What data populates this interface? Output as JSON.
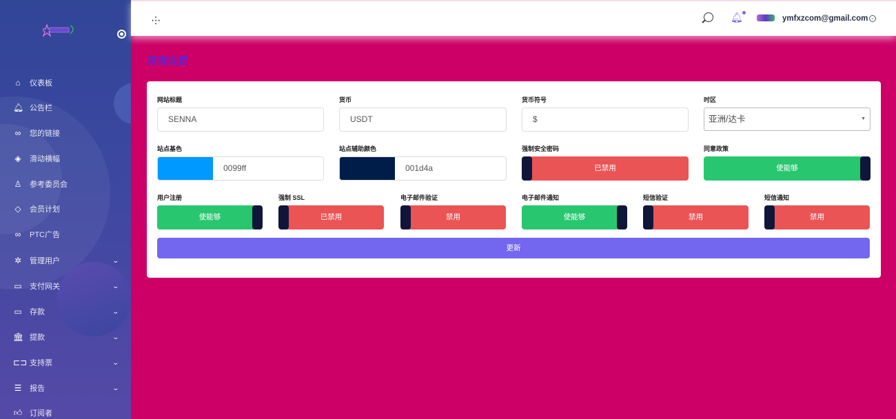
{
  "header": {
    "user_email": "ymfxzcom@gmail.com"
  },
  "sidebar": {
    "items": [
      {
        "label": "仪表板",
        "icon": "home-icon",
        "glyph": "⌂"
      },
      {
        "label": "公告栏",
        "icon": "bell-icon",
        "glyph": "🔔︎"
      },
      {
        "label": "您的链接",
        "icon": "link-icon",
        "glyph": "∞"
      },
      {
        "label": "滑动横幅",
        "icon": "layers-icon",
        "glyph": "◈"
      },
      {
        "label": "参考委员会",
        "icon": "tree-icon",
        "glyph": "♙"
      },
      {
        "label": "会员计划",
        "icon": "tag-icon",
        "glyph": "◇"
      },
      {
        "label": "PTC广告",
        "icon": "link-icon",
        "glyph": "∞"
      },
      {
        "label": "管理用户",
        "icon": "users-gear-icon",
        "glyph": "✲",
        "expandable": true
      },
      {
        "label": "支付网关",
        "icon": "credit-card-icon",
        "glyph": "▭",
        "expandable": true
      },
      {
        "label": "存款",
        "icon": "credit-card-icon",
        "glyph": "▭",
        "expandable": true
      },
      {
        "label": "提款",
        "icon": "bank-icon",
        "glyph": "🏛︎",
        "expandable": true
      },
      {
        "label": "支持票",
        "icon": "ticket-icon",
        "glyph": "⊏⊐",
        "expandable": true
      },
      {
        "label": "报告",
        "icon": "list-icon",
        "glyph": "☰",
        "expandable": true
      },
      {
        "label": "订阅者",
        "icon": "thumbs-up-icon",
        "glyph": "👍︎"
      }
    ]
  },
  "page": {
    "title": "常规设置"
  },
  "form": {
    "site_title": {
      "label": "网站标题",
      "value": "SENNA"
    },
    "currency": {
      "label": "货币",
      "value": "USDT"
    },
    "currency_symbol": {
      "label": "货币符号",
      "value": "$"
    },
    "timezone": {
      "label": "时区",
      "value": "亚洲/达卡"
    },
    "base_color": {
      "label": "站点基色",
      "value": "0099ff",
      "color": "#0099ff"
    },
    "secondary_color": {
      "label": "站点辅助颜色",
      "value": "001d4a",
      "color": "#001d4a"
    },
    "toggles_row1": [
      {
        "label": "强制安全密码",
        "state": "已禁用",
        "on": false
      },
      {
        "label": "同意政策",
        "state": "使能够",
        "on": true
      }
    ],
    "toggles_row2": [
      {
        "label": "用户注册",
        "state": "使能够",
        "on": true
      },
      {
        "label": "强制 SSL",
        "state": "已禁用",
        "on": false
      },
      {
        "label": "电子邮件验证",
        "state": "禁用",
        "on": false
      },
      {
        "label": "电子邮件通知",
        "state": "使能够",
        "on": true
      },
      {
        "label": "短信验证",
        "state": "禁用",
        "on": false
      },
      {
        "label": "短信通知",
        "state": "禁用",
        "on": false
      }
    ],
    "submit_label": "更新"
  },
  "colors": {
    "main_bg": "#cc0066",
    "accent": "#7367f0",
    "enabled": "#28c76f",
    "disabled": "#ea5455"
  }
}
